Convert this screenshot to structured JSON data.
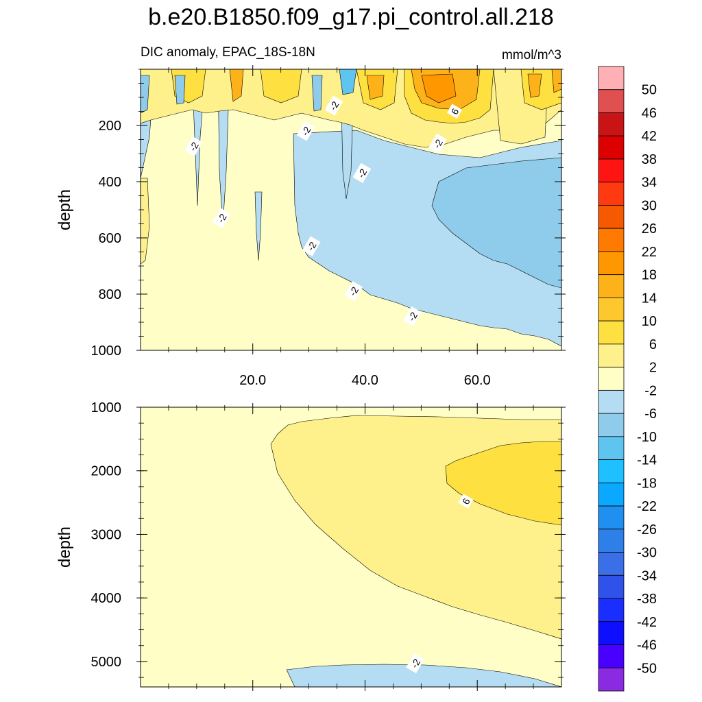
{
  "chart_data": {
    "type": "heatmap",
    "title": "b.e20.B1850.f09_g17.pi_control.all.218",
    "subtitle_left": "DIC anomaly, EPAC_18S-18N",
    "units": "mmol/m^3",
    "xlim": [
      0,
      75
    ],
    "x_ticks": [
      20,
      40,
      60
    ],
    "x_tick_labels": [
      "20.0",
      "40.0",
      "60.0"
    ],
    "panels": [
      {
        "name": "upper",
        "ylabel": "depth",
        "ylim": [
          0,
          1000
        ],
        "y_ticks": [
          200,
          400,
          600,
          800,
          1000
        ],
        "y_tick_labels": [
          "200",
          "400",
          "600",
          "800",
          "1000"
        ],
        "contour_labels": [
          {
            "text": "-2",
            "x": 9.5,
            "depth": 275
          },
          {
            "text": "-2",
            "x": 14.5,
            "depth": 530
          },
          {
            "text": "-2",
            "x": 29.5,
            "depth": 220
          },
          {
            "text": "-2",
            "x": 34.5,
            "depth": 130
          },
          {
            "text": "-2",
            "x": 39.5,
            "depth": 370
          },
          {
            "text": "-2",
            "x": 30.5,
            "depth": 630
          },
          {
            "text": "-2",
            "x": 38.0,
            "depth": 790
          },
          {
            "text": "-2",
            "x": 48.5,
            "depth": 880
          },
          {
            "text": "-2",
            "x": 53.0,
            "depth": 265
          },
          {
            "text": "6",
            "x": 56.0,
            "depth": 150
          }
        ]
      },
      {
        "name": "lower",
        "ylabel": "depth",
        "ylim": [
          1000,
          5400
        ],
        "y_ticks": [
          1000,
          2000,
          3000,
          4000,
          5000
        ],
        "y_tick_labels": [
          "1000",
          "2000",
          "3000",
          "4000",
          "5000"
        ],
        "contour_labels": [
          {
            "text": "6",
            "x": 58.0,
            "depth": 2480
          },
          {
            "text": "-2",
            "x": 49.0,
            "depth": 5030
          }
        ]
      }
    ],
    "levels": [
      -50,
      -46,
      -42,
      -38,
      -34,
      -30,
      -26,
      -22,
      -18,
      -14,
      -10,
      -6,
      -2,
      2,
      6,
      10,
      14,
      18,
      22,
      26,
      30,
      34,
      38,
      42,
      46,
      50
    ],
    "colorbar_labels": [
      "50",
      "46",
      "42",
      "38",
      "34",
      "30",
      "26",
      "22",
      "18",
      "14",
      "10",
      "6",
      "2",
      "-2",
      "-6",
      "-10",
      "-14",
      "-18",
      "-22",
      "-26",
      "-30",
      "-34",
      "-38",
      "-42",
      "-46",
      "-50"
    ],
    "colors": [
      "#8a2be2",
      "#4a00ff",
      "#0f0fff",
      "#1a2fff",
      "#2f52ea",
      "#3a6fe8",
      "#2f7fe8",
      "#1f8ff0",
      "#0aa8ff",
      "#1ec0ff",
      "#5ec4f0",
      "#8fcbea",
      "#b4dcf2",
      "#fefec6",
      "#fef18c",
      "#fee040",
      "#fcc82e",
      "#fdb21a",
      "#ff9800",
      "#ff7a00",
      "#f55a00",
      "#ff3a10",
      "#ff1414",
      "#dd0000",
      "#c81414",
      "#e05050",
      "#ffb0b4"
    ]
  }
}
